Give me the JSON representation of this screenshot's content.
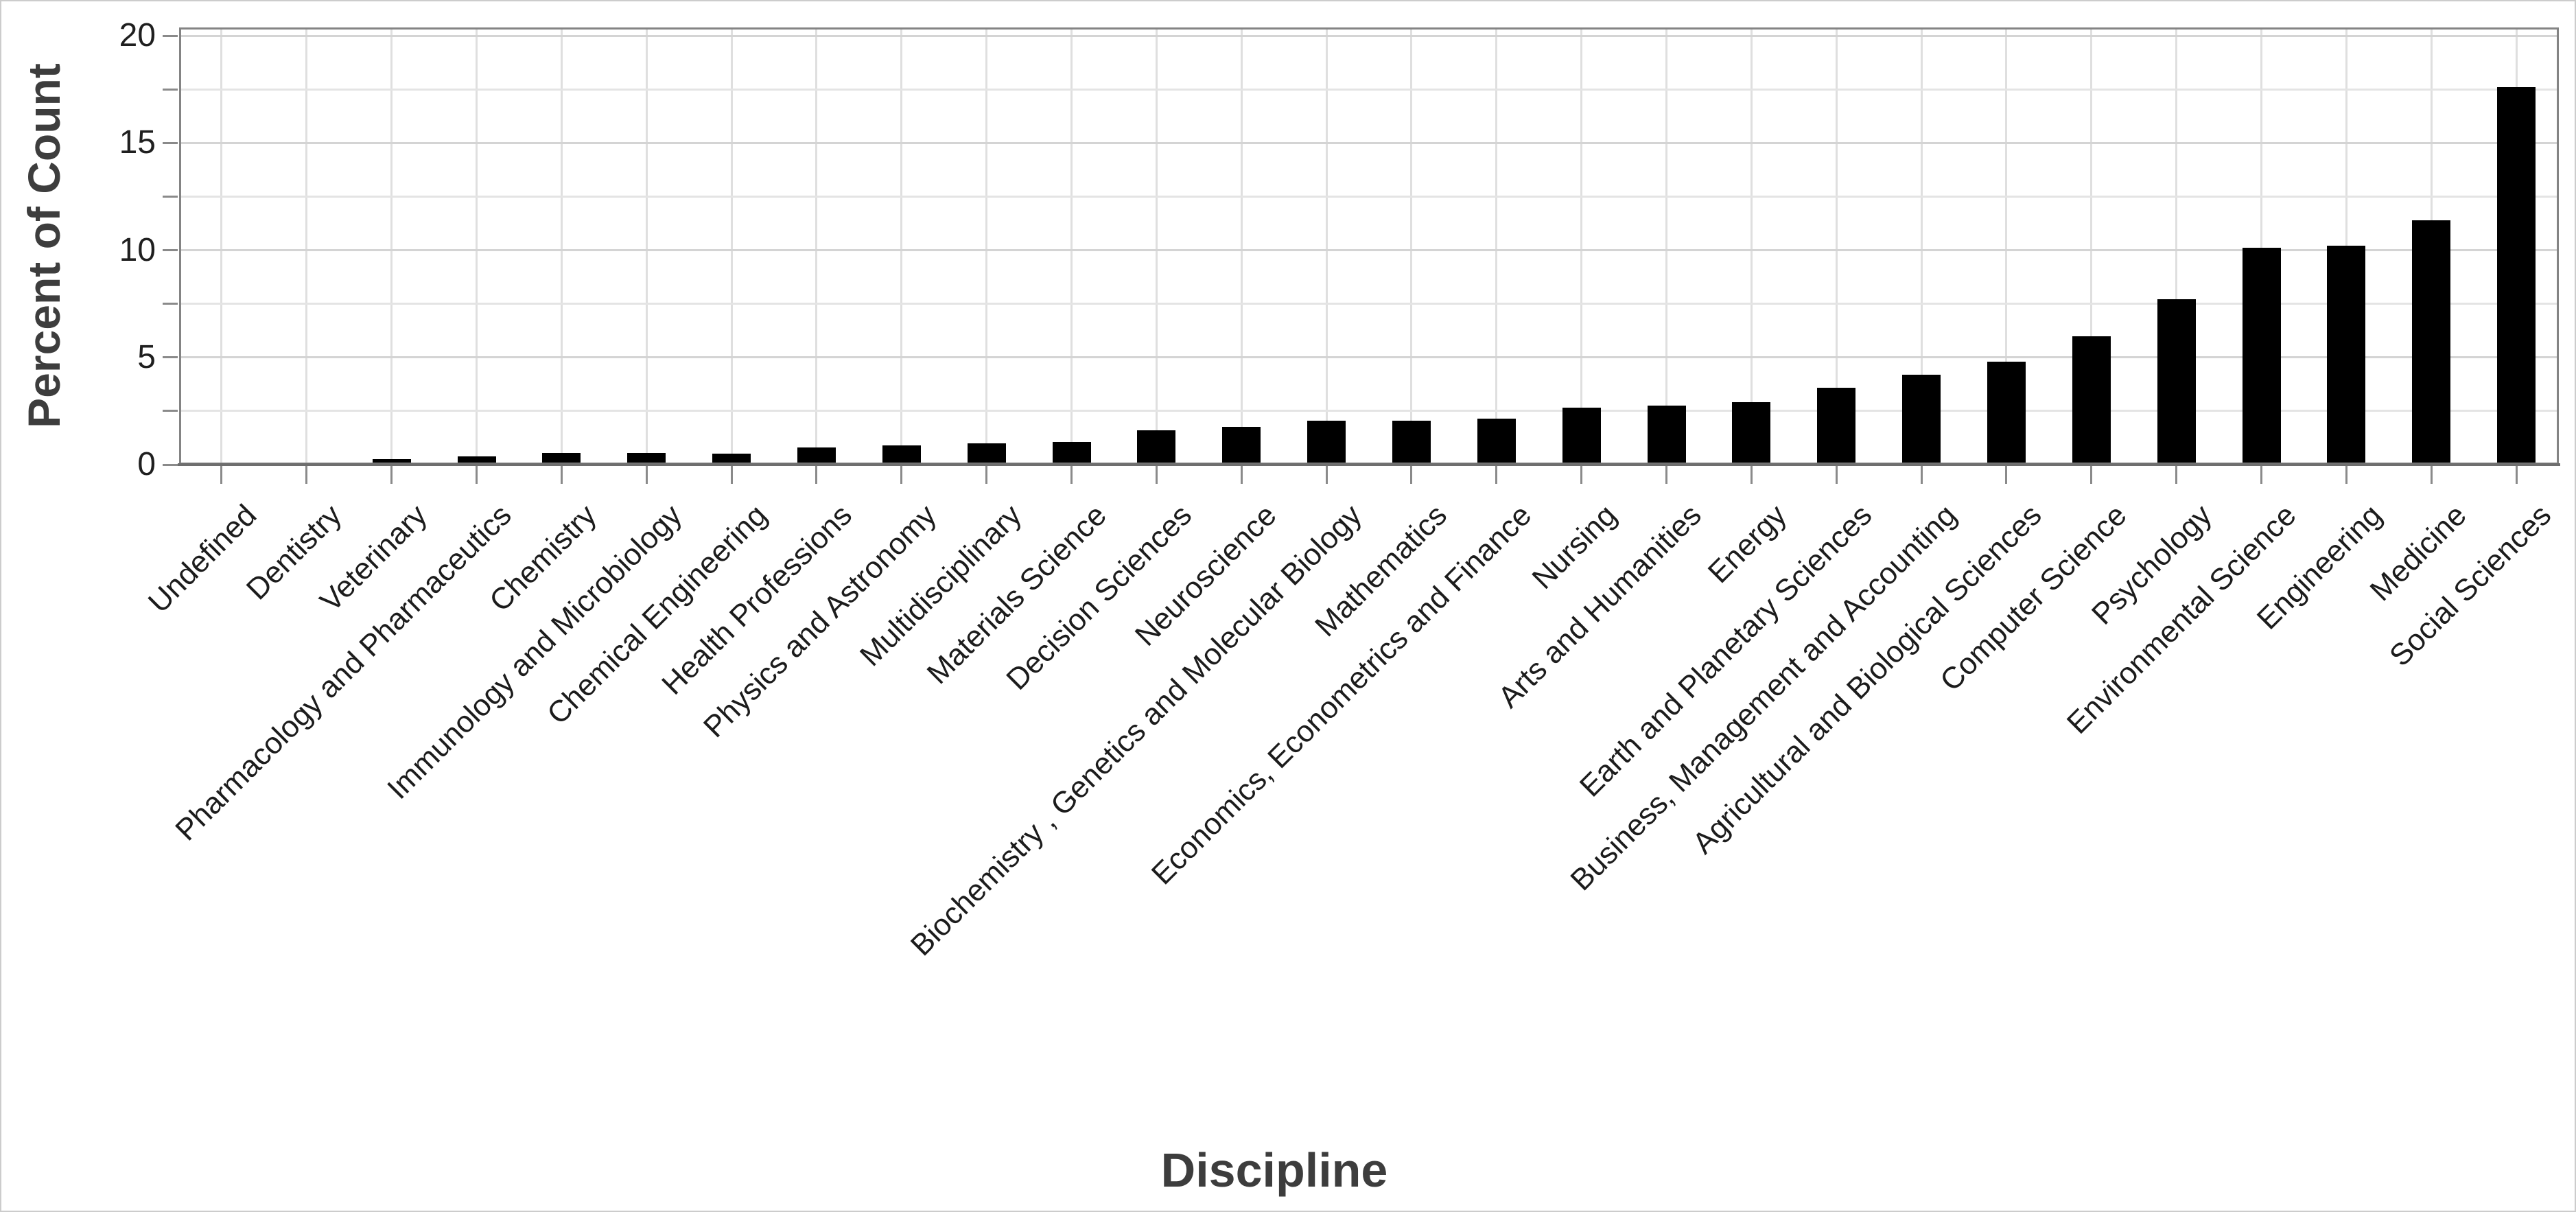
{
  "figure": {
    "background": "#ffffff",
    "border_color": "#cccccc"
  },
  "chart_data": {
    "type": "bar",
    "title": "",
    "xlabel": "Discipline",
    "ylabel": "Percent of Count",
    "bar_color": "#000000",
    "ylim": [
      0,
      20
    ],
    "grid": true,
    "legend": "none",
    "y_tick_labels": [
      "0",
      "5",
      "10",
      "15",
      "20"
    ],
    "y_major_values": [
      0,
      5,
      10,
      15,
      20
    ],
    "y_minor_values": [
      2.5,
      7.5,
      12.5,
      17.5
    ],
    "categories": [
      "Undefined",
      "Dentistry",
      "Veterinary",
      "Pharmacology and Pharmaceutics",
      "Chemistry",
      "Immunology and Microbiology",
      "Chemical Engineering",
      "Health Professions",
      "Physics and Astronomy",
      "Multidisciplinary",
      "Materials Science",
      "Decision Sciences",
      "Neuroscience",
      "Biochemistry , Genetics and Molecular Biology",
      "Mathematics",
      "Economics, Econometrics and Finance",
      "Nursing",
      "Arts and Humanities",
      "Energy",
      "Earth and Planetary Sciences",
      "Business, Management and Accounting",
      "Agricultural and Biological Sciences",
      "Computer Science",
      "Psychology",
      "Environmental Science",
      "Engineering",
      "Medicine",
      "Social Sciences"
    ],
    "values": [
      0.1,
      0.1,
      0.25,
      0.4,
      0.55,
      0.55,
      0.5,
      0.8,
      0.9,
      1.0,
      1.05,
      1.6,
      1.75,
      2.05,
      2.05,
      2.15,
      2.65,
      2.75,
      2.9,
      3.6,
      4.2,
      4.8,
      6.0,
      7.7,
      10.1,
      10.2,
      11.4,
      17.6
    ]
  },
  "colors": {
    "bar": "#000000",
    "panel_border": "#848484",
    "axis_line": "#6e6e6e",
    "tick": "#8a8a8a",
    "grid_major": "#d4d4d4",
    "grid_minor": "#e4e4e4",
    "grid_vertical": "#dfdfdf",
    "tick_label": "#1f1f1f",
    "axis_title": "#3d3d3d"
  }
}
